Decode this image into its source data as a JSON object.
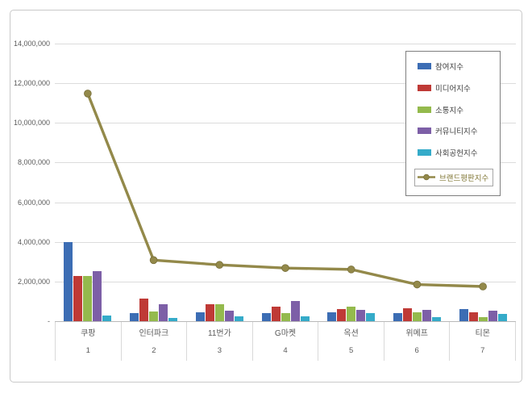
{
  "chart_data": {
    "type": "bar+line",
    "title": "",
    "categories": [
      "쿠팡",
      "인터파크",
      "11번가",
      "G마켓",
      "옥션",
      "위메프",
      "티몬"
    ],
    "category_ranks": [
      "1",
      "2",
      "3",
      "4",
      "5",
      "6",
      "7"
    ],
    "y_ticks": [
      "14,000,000",
      "12,000,000",
      "10,000,000",
      "8,000,000",
      "6,000,000",
      "4,000,000",
      "2,000,000",
      "-"
    ],
    "ylim": [
      0,
      14000000
    ],
    "tick_step": 2000000,
    "grid": true,
    "legend_position": "top-right",
    "legend_border_color": "#7f7f7f",
    "bar_series": [
      {
        "name": "참여지수",
        "color": "#3c6db4",
        "values": [
          4000000,
          400000,
          430000,
          420000,
          450000,
          390000,
          600000
        ]
      },
      {
        "name": "미디어지수",
        "color": "#bf3a36",
        "values": [
          2280000,
          1150000,
          840000,
          720000,
          620000,
          650000,
          450000
        ]
      },
      {
        "name": "소통지수",
        "color": "#94ba4d",
        "values": [
          2300000,
          500000,
          860000,
          400000,
          740000,
          450000,
          200000
        ]
      },
      {
        "name": "커뮤니티지수",
        "color": "#7d5fa7",
        "values": [
          2520000,
          840000,
          550000,
          1000000,
          560000,
          560000,
          550000
        ]
      },
      {
        "name": "사회공헌지수",
        "color": "#35abc9",
        "values": [
          300000,
          170000,
          240000,
          250000,
          390000,
          200000,
          350000
        ]
      }
    ],
    "line_series": {
      "name": "브랜드평판지수",
      "color": "#93894a",
      "marker_stroke": "#776e38",
      "label_color": "#7f7533",
      "selected": true,
      "values": [
        11480000,
        3080000,
        2840000,
        2680000,
        2610000,
        1850000,
        1750000
      ]
    }
  }
}
